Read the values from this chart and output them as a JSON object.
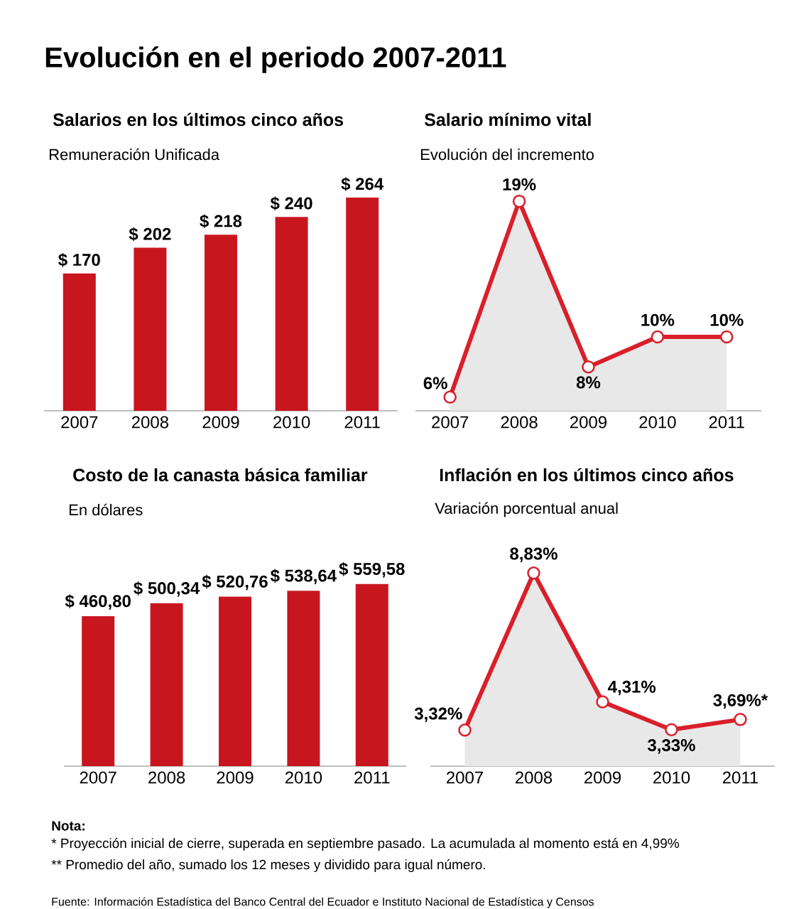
{
  "chart_data": [
    {
      "type": "other",
      "title": "Evolución en el periodo 2007-2011",
      "annotations": [
        "Nota:",
        "* Proyección inicial de cierre, superada en septiembre pasado. La acumulada al momento está en 4,99%",
        "** Promedio del año, sumado los 12 meses y dividido para igual número.",
        "Fuente: Información Estadística del Banco Central del Ecuador e Instituto Nacional de Estadística y Censos"
      ]
    },
    {
      "type": "bar",
      "title": "Salarios en los últimos cinco años",
      "subtitle": "Remuneración Unificada",
      "categories": [
        "2007",
        "2008",
        "2009",
        "2010",
        "2011"
      ],
      "values": [
        170,
        202,
        218,
        240,
        264
      ],
      "value_labels": [
        "$ 170",
        "$ 202",
        "$ 218",
        "$ 240",
        "$ 264"
      ],
      "color": "#c8161f"
    },
    {
      "type": "line",
      "title": "Salario mínimo vital",
      "subtitle": "Evolución del incremento",
      "categories": [
        "2007",
        "2008",
        "2009",
        "2010",
        "2011"
      ],
      "values": [
        6,
        19,
        8,
        10,
        10
      ],
      "value_labels": [
        "6%",
        "19%",
        "8%",
        "10%",
        "10%"
      ],
      "color": "#d9202a",
      "marker": "circle"
    },
    {
      "type": "bar",
      "title": "Costo de la canasta básica familiar",
      "subtitle": "En dólares",
      "categories": [
        "2007",
        "2008",
        "2009",
        "2010",
        "2011"
      ],
      "values": [
        460.8,
        500.34,
        520.76,
        538.64,
        559.58
      ],
      "value_labels": [
        "$ 460,80",
        "$ 500,34",
        "$ 520,76",
        "$ 538,64",
        "$ 559,58"
      ],
      "color": "#c8161f"
    },
    {
      "type": "line",
      "title": "Inflación en los últimos cinco años",
      "subtitle": "Variación porcentual anual",
      "categories": [
        "2007",
        "2008",
        "2009",
        "2010",
        "2011"
      ],
      "values": [
        3.32,
        8.83,
        4.31,
        3.33,
        3.69
      ],
      "value_labels": [
        "3,32%",
        "8,83%",
        "4,31%",
        "3,33%",
        "3,69%*"
      ],
      "color": "#d9202a",
      "marker": "circle"
    }
  ]
}
